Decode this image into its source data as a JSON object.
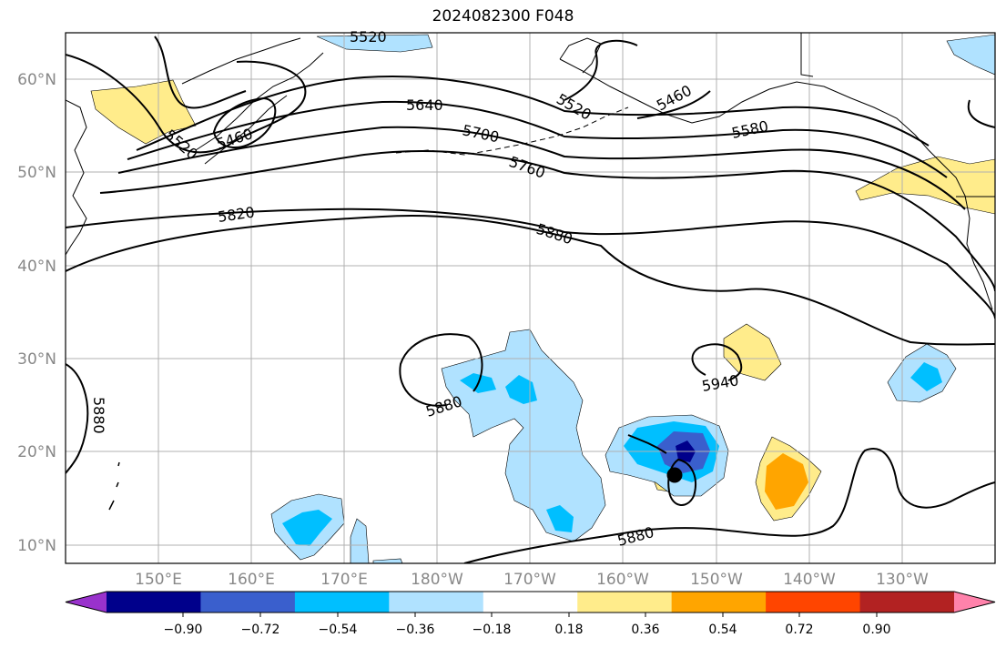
{
  "title": "2024082300 F048",
  "map": {
    "lat_labels": [
      "60°N",
      "50°N",
      "40°N",
      "30°N",
      "20°N",
      "10°N"
    ],
    "lon_labels": [
      "150°E",
      "160°E",
      "170°E",
      "180°W",
      "170°W",
      "160°W",
      "150°W",
      "140°W",
      "130°W"
    ],
    "contour_labels": [
      "5520",
      "5460",
      "5520",
      "5640",
      "5520",
      "5460",
      "5580",
      "5700",
      "5760",
      "5820",
      "5880",
      "5880",
      "5880",
      "5940",
      "5880"
    ],
    "marker": "storm-center-dot"
  },
  "colorbar": {
    "ticks": [
      "−0.90",
      "−0.72",
      "−0.54",
      "−0.36",
      "−0.18",
      "0.18",
      "0.36",
      "0.54",
      "0.72",
      "0.90"
    ],
    "colors": [
      "#9932cc",
      "#00008b",
      "#3a5fcd",
      "#00bfff",
      "#b0e2ff",
      "#ffffff",
      "#ffec8b",
      "#ffa500",
      "#ff4500",
      "#b22222",
      "#ff82ab"
    ]
  }
}
